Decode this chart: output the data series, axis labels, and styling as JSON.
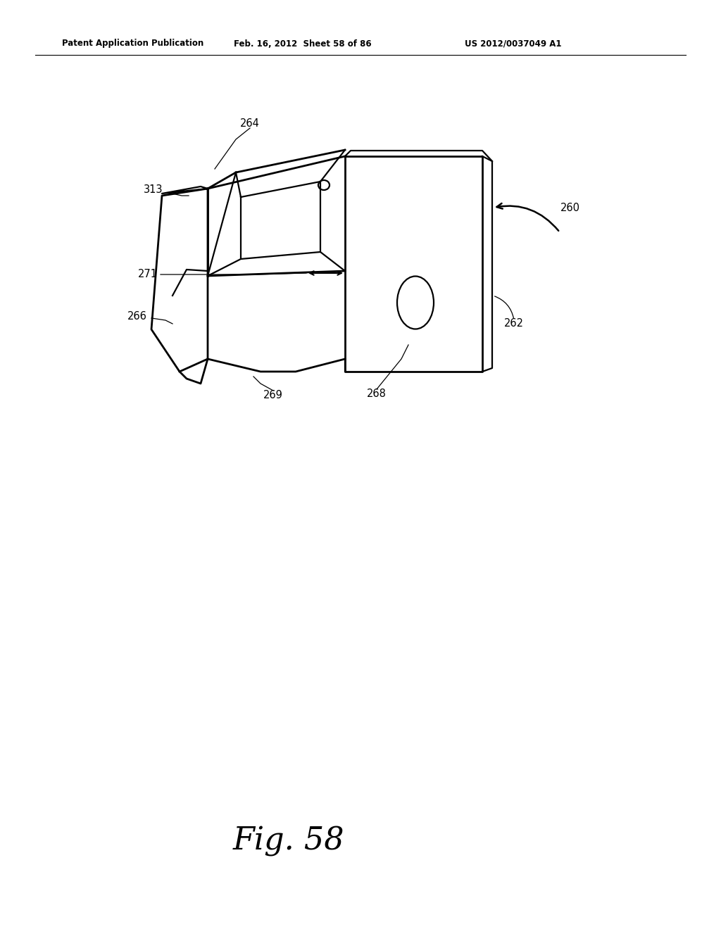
{
  "background_color": "#ffffff",
  "header_left": "Patent Application Publication",
  "header_mid": "Feb. 16, 2012  Sheet 58 of 86",
  "header_right": "US 2012/0037049 A1",
  "fig_label": "Fig. 58"
}
